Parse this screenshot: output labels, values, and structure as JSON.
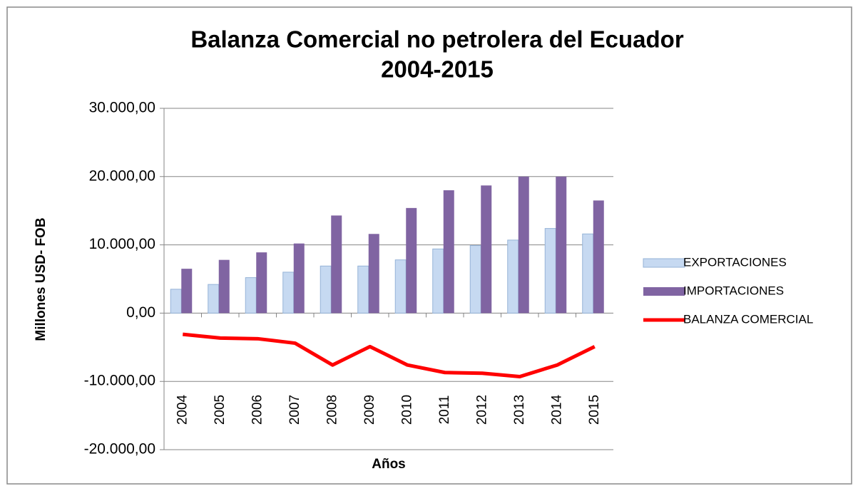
{
  "chart_data": {
    "type": "bar_line",
    "title": [
      "Balanza Comercial no petrolera del Ecuador",
      "2004-2015"
    ],
    "ylabel": "Millones USD- FOB",
    "xlabel": "Años",
    "categories": [
      "2004",
      "2005",
      "2006",
      "2007",
      "2008",
      "2009",
      "2010",
      "2011",
      "2012",
      "2013",
      "2014",
      "2015"
    ],
    "series": [
      {
        "name": "EXPORTACIONES",
        "type": "bar",
        "color": "#c6d9f1",
        "values": [
          3500,
          4200,
          5200,
          6000,
          6900,
          6900,
          7800,
          9400,
          9900,
          10700,
          12400,
          11600
        ]
      },
      {
        "name": "IMPORTACIONES",
        "type": "bar",
        "color": "#8064a2",
        "values": [
          6500,
          7800,
          8900,
          10200,
          14300,
          11600,
          15400,
          18000,
          18700,
          20000,
          20000,
          16500
        ]
      },
      {
        "name": "BALANZA COMERCIAL",
        "type": "line",
        "color": "#ff0000",
        "values": [
          -3100,
          -3650,
          -3750,
          -4400,
          -7600,
          -4900,
          -7600,
          -8700,
          -8800,
          -9300,
          -7600,
          -4900
        ]
      }
    ],
    "ylim": [
      -20000,
      30000
    ],
    "yticks": [
      {
        "value": -20000,
        "label": "-20.000,00"
      },
      {
        "value": -10000,
        "label": "-10.000,00"
      },
      {
        "value": 0,
        "label": "0,00"
      },
      {
        "value": 10000,
        "label": "10.000,00"
      },
      {
        "value": 20000,
        "label": "20.000,00"
      },
      {
        "value": 30000,
        "label": "30.000,00"
      }
    ],
    "grid": true,
    "legend": "right"
  }
}
